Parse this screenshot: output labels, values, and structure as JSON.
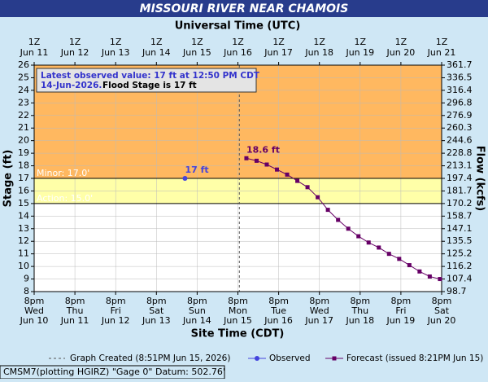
{
  "chart_data": {
    "type": "line",
    "title": "MISSOURI RIVER NEAR CHAMOIS",
    "top_axis_label": "Universal Time (UTC)",
    "x_axis_label": "Site Time (CDT)",
    "y_axis_label": "Stage (ft)",
    "y2_axis_label": "Flow (kcfs)",
    "xlim": [
      "2026-06-10T20:00",
      "2026-06-20T20:00"
    ],
    "xticks": [
      {
        "value": "2026-06-10T20:00",
        "label": [
          "8pm",
          "Wed",
          "Jun 10"
        ]
      },
      {
        "value": "2026-06-11T20:00",
        "label": [
          "8pm",
          "Thu",
          "Jun 11"
        ]
      },
      {
        "value": "2026-06-12T20:00",
        "label": [
          "8pm",
          "Fri",
          "Jun 12"
        ]
      },
      {
        "value": "2026-06-13T20:00",
        "label": [
          "8pm",
          "Sat",
          "Jun 13"
        ]
      },
      {
        "value": "2026-06-14T20:00",
        "label": [
          "8pm",
          "Sun",
          "Jun 14"
        ]
      },
      {
        "value": "2026-06-15T20:00",
        "label": [
          "8pm",
          "Mon",
          "Jun 15"
        ]
      },
      {
        "value": "2026-06-16T20:00",
        "label": [
          "8pm",
          "Tue",
          "Jun 16"
        ]
      },
      {
        "value": "2026-06-17T20:00",
        "label": [
          "8pm",
          "Wed",
          "Jun 17"
        ]
      },
      {
        "value": "2026-06-18T20:00",
        "label": [
          "8pm",
          "Thu",
          "Jun 18"
        ]
      },
      {
        "value": "2026-06-19T20:00",
        "label": [
          "8pm",
          "Fri",
          "Jun 19"
        ]
      },
      {
        "value": "2026-06-20T20:00",
        "label": [
          "8pm",
          "Sat",
          "Jun 20"
        ]
      }
    ],
    "top_xticks": [
      {
        "value": "2026-06-10T20:00",
        "label": [
          "1Z",
          "Jun 11"
        ]
      },
      {
        "value": "2026-06-11T20:00",
        "label": [
          "1Z",
          "Jun 12"
        ]
      },
      {
        "value": "2026-06-12T20:00",
        "label": [
          "1Z",
          "Jun 13"
        ]
      },
      {
        "value": "2026-06-13T20:00",
        "label": [
          "1Z",
          "Jun 14"
        ]
      },
      {
        "value": "2026-06-14T20:00",
        "label": [
          "1Z",
          "Jun 15"
        ]
      },
      {
        "value": "2026-06-15T20:00",
        "label": [
          "1Z",
          "Jun 16"
        ]
      },
      {
        "value": "2026-06-16T20:00",
        "label": [
          "1Z",
          "Jun 17"
        ]
      },
      {
        "value": "2026-06-17T20:00",
        "label": [
          "1Z",
          "Jun 18"
        ]
      },
      {
        "value": "2026-06-18T20:00",
        "label": [
          "1Z",
          "Jun 19"
        ]
      },
      {
        "value": "2026-06-19T20:00",
        "label": [
          "1Z",
          "Jun 20"
        ]
      },
      {
        "value": "2026-06-20T20:00",
        "label": [
          "1Z",
          "Jun 21"
        ]
      }
    ],
    "ylim": [
      8,
      26
    ],
    "yticks": [
      8,
      9,
      10,
      11,
      12,
      13,
      14,
      15,
      16,
      17,
      18,
      19,
      20,
      21,
      22,
      23,
      24,
      25,
      26
    ],
    "y2ticks": [
      98.7,
      107.4,
      116.2,
      125.2,
      135.5,
      147.1,
      158.7,
      170.2,
      181.7,
      197.4,
      213.1,
      228.8,
      244.6,
      260.3,
      276.9,
      296.8,
      316.4,
      336.5,
      361.7
    ],
    "grid": true,
    "thresholds": [
      {
        "label": "Minor: 17.0'",
        "value": 17,
        "color": "#ffb860"
      },
      {
        "label": "Action: 15.0'",
        "value": 15,
        "color": "#ffffa8"
      }
    ],
    "graph_created": {
      "x": "2026-06-15T20:51",
      "label": "Graph Created (8:51PM Jun 15, 2026)"
    },
    "series": [
      {
        "name": "Observed",
        "color": "#4444dd",
        "marker": "circle",
        "x": [
          "2026-06-14T12:50"
        ],
        "values": [
          17
        ],
        "value_labels": [
          "17 ft"
        ]
      },
      {
        "name": "Forecast (issued 8:21PM Jun 15)",
        "color": "#660066",
        "marker": "square",
        "x": [
          "2026-06-16T01:00",
          "2026-06-16T07:00",
          "2026-06-16T13:00",
          "2026-06-16T19:00",
          "2026-06-17T01:00",
          "2026-06-17T07:00",
          "2026-06-17T13:00",
          "2026-06-17T19:00",
          "2026-06-18T01:00",
          "2026-06-18T07:00",
          "2026-06-18T13:00",
          "2026-06-18T19:00",
          "2026-06-19T01:00",
          "2026-06-19T07:00",
          "2026-06-19T13:00",
          "2026-06-19T19:00",
          "2026-06-20T01:00",
          "2026-06-20T07:00",
          "2026-06-20T13:00",
          "2026-06-20T19:00"
        ],
        "values": [
          18.6,
          18.4,
          18.1,
          17.7,
          17.3,
          16.8,
          16.3,
          15.5,
          14.5,
          13.7,
          13.0,
          12.4,
          11.9,
          11.5,
          11.0,
          10.6,
          10.1,
          9.6,
          9.2,
          9.0
        ],
        "value_labels": [
          "18.6 ft",
          null,
          null,
          null,
          null,
          null,
          null,
          null,
          null,
          null,
          null,
          null,
          null,
          null,
          null,
          null,
          null,
          null,
          null,
          null
        ]
      }
    ],
    "info_box": {
      "line1": "Latest observed value: 17 ft at 12:50 PM CDT",
      "line2_date": "14-Jun-2026.",
      "line2_flood": "Flood Stage is 17 ft"
    },
    "footer": "CMSM7(plotting HGIRZ) \"Gage 0\" Datum: 502.76'"
  }
}
